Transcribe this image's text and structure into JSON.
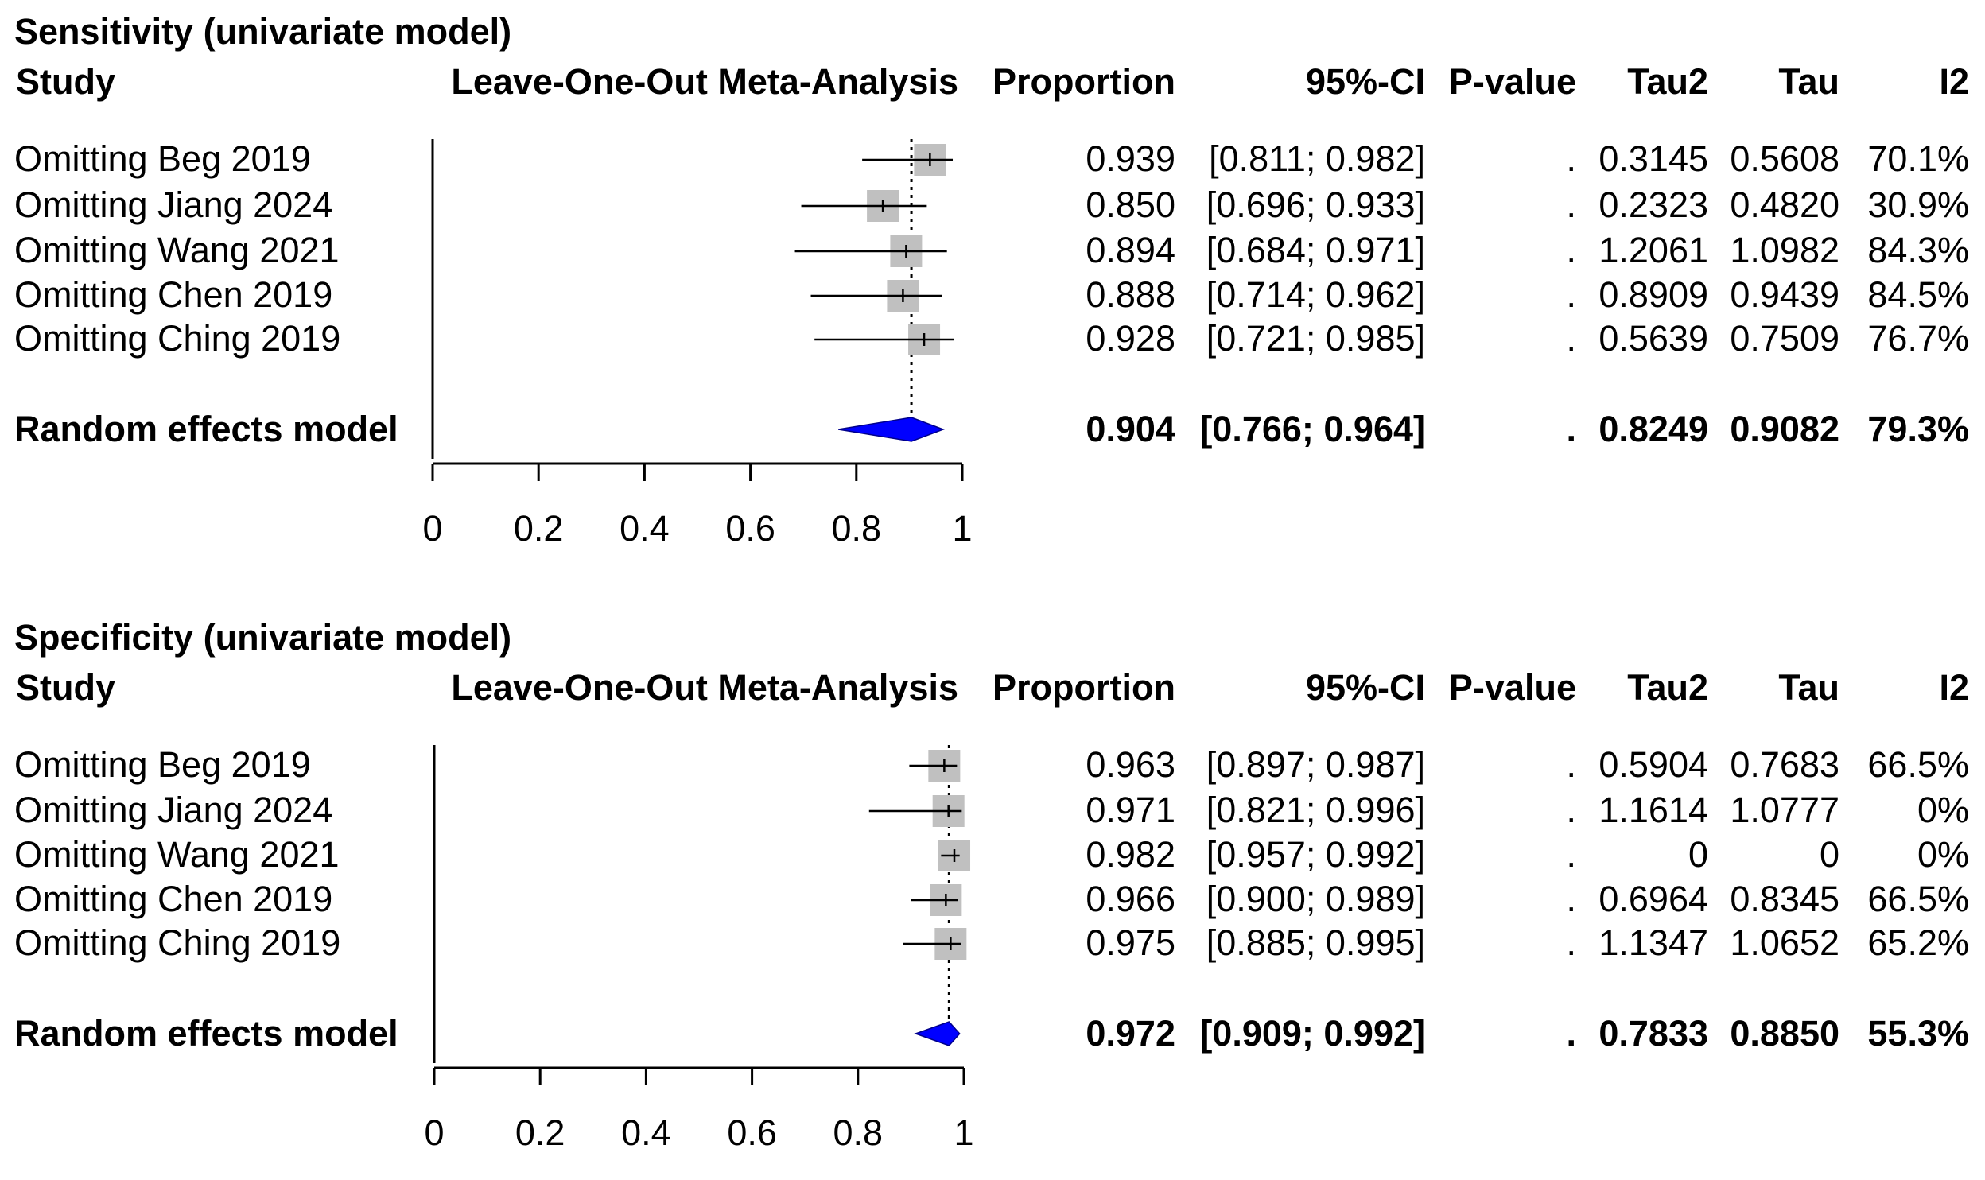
{
  "chart_data": [
    {
      "type": "forest",
      "title": "Sensitivity (univariate model)",
      "headers": {
        "study": "Study",
        "plot": "Leave-One-Out Meta-Analysis",
        "proportion": "Proportion",
        "ci": "95%-CI",
        "pvalue": "P-value",
        "tau2": "Tau2",
        "tau": "Tau",
        "i2": "I2"
      },
      "xlim": [
        0,
        1
      ],
      "ticks": [
        0,
        0.2,
        0.4,
        0.6,
        0.8,
        1
      ],
      "tick_labels": [
        "0",
        "0.2",
        "0.4",
        "0.6",
        "0.8",
        "1"
      ],
      "reference_line": 0.904,
      "studies": [
        {
          "label": "Omitting Beg 2019",
          "est": 0.939,
          "lo": 0.811,
          "hi": 0.982,
          "proportion": "0.939",
          "ci": "[0.811; 0.982]",
          "pvalue": ".",
          "tau2": "0.3145",
          "tau": "0.5608",
          "i2": "70.1%"
        },
        {
          "label": "Omitting Jiang 2024",
          "est": 0.85,
          "lo": 0.696,
          "hi": 0.933,
          "proportion": "0.850",
          "ci": "[0.696; 0.933]",
          "pvalue": ".",
          "tau2": "0.2323",
          "tau": "0.4820",
          "i2": "30.9%"
        },
        {
          "label": "Omitting Wang 2021",
          "est": 0.894,
          "lo": 0.684,
          "hi": 0.971,
          "proportion": "0.894",
          "ci": "[0.684; 0.971]",
          "pvalue": ".",
          "tau2": "1.2061",
          "tau": "1.0982",
          "i2": "84.3%"
        },
        {
          "label": "Omitting Chen 2019",
          "est": 0.888,
          "lo": 0.714,
          "hi": 0.962,
          "proportion": "0.888",
          "ci": "[0.714; 0.962]",
          "pvalue": ".",
          "tau2": "0.8909",
          "tau": "0.9439",
          "i2": "84.5%"
        },
        {
          "label": "Omitting Ching 2019",
          "est": 0.928,
          "lo": 0.721,
          "hi": 0.985,
          "proportion": "0.928",
          "ci": "[0.721; 0.985]",
          "pvalue": ".",
          "tau2": "0.5639",
          "tau": "0.7509",
          "i2": "76.7%"
        }
      ],
      "summary": {
        "label": "Random effects model",
        "est": 0.904,
        "lo": 0.766,
        "hi": 0.964,
        "proportion": "0.904",
        "ci": "[0.766; 0.964]",
        "pvalue": ".",
        "tau2": "0.8249",
        "tau": "0.9082",
        "i2": "79.3%"
      },
      "colors": {
        "diamond": "#0000ff",
        "box": "#c0c0c0",
        "line": "#000000"
      }
    },
    {
      "type": "forest",
      "title": "Specificity (univariate model)",
      "headers": {
        "study": "Study",
        "plot": "Leave-One-Out Meta-Analysis",
        "proportion": "Proportion",
        "ci": "95%-CI",
        "pvalue": "P-value",
        "tau2": "Tau2",
        "tau": "Tau",
        "i2": "I2"
      },
      "xlim": [
        0,
        1
      ],
      "ticks": [
        0,
        0.2,
        0.4,
        0.6,
        0.8,
        1
      ],
      "tick_labels": [
        "0",
        "0.2",
        "0.4",
        "0.6",
        "0.8",
        "1"
      ],
      "reference_line": 0.972,
      "studies": [
        {
          "label": "Omitting Beg 2019",
          "est": 0.963,
          "lo": 0.897,
          "hi": 0.987,
          "proportion": "0.963",
          "ci": "[0.897; 0.987]",
          "pvalue": ".",
          "tau2": "0.5904",
          "tau": "0.7683",
          "i2": "66.5%"
        },
        {
          "label": "Omitting Jiang 2024",
          "est": 0.971,
          "lo": 0.821,
          "hi": 0.996,
          "proportion": "0.971",
          "ci": "[0.821; 0.996]",
          "pvalue": ".",
          "tau2": "1.1614",
          "tau": "1.0777",
          "i2": "0%"
        },
        {
          "label": "Omitting Wang 2021",
          "est": 0.982,
          "lo": 0.957,
          "hi": 0.992,
          "proportion": "0.982",
          "ci": "[0.957; 0.992]",
          "pvalue": ".",
          "tau2": "0",
          "tau": "0",
          "i2": "0%"
        },
        {
          "label": "Omitting Chen 2019",
          "est": 0.966,
          "lo": 0.9,
          "hi": 0.989,
          "proportion": "0.966",
          "ci": "[0.900; 0.989]",
          "pvalue": ".",
          "tau2": "0.6964",
          "tau": "0.8345",
          "i2": "66.5%"
        },
        {
          "label": "Omitting Ching 2019",
          "est": 0.975,
          "lo": 0.885,
          "hi": 0.995,
          "proportion": "0.975",
          "ci": "[0.885; 0.995]",
          "pvalue": ".",
          "tau2": "1.1347",
          "tau": "1.0652",
          "i2": "65.2%"
        }
      ],
      "summary": {
        "label": "Random effects model",
        "est": 0.972,
        "lo": 0.909,
        "hi": 0.992,
        "proportion": "0.972",
        "ci": "[0.909; 0.992]",
        "pvalue": ".",
        "tau2": "0.7833",
        "tau": "0.8850",
        "i2": "55.3%"
      },
      "colors": {
        "diamond": "#0000ff",
        "box": "#c0c0c0",
        "line": "#000000"
      }
    }
  ]
}
